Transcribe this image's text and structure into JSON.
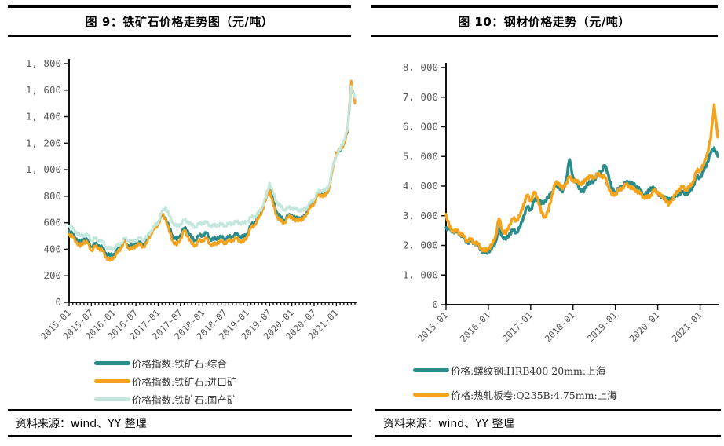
{
  "page": {
    "background": "#ffffff"
  },
  "colors": {
    "teal": "#2B8C8C",
    "orange": "#F5A31B",
    "light_teal": "#C3E6DD",
    "axis": "#111111",
    "tick_label": "#595959",
    "rule": "#000000"
  },
  "panels": [
    {
      "title": "图 9：铁矿石价格走势图（元/吨）",
      "source": "资料来源：wind、YY 整理"
    },
    {
      "title": "图 10：钢材价格走势（元/吨）",
      "source": "资料来源：wind、YY 整理"
    }
  ],
  "chart_data": [
    {
      "type": "line",
      "title": "图 9：铁矿石价格走势图（元/吨）",
      "ylabel": "",
      "xlabel": "",
      "grid": false,
      "legend_position": "bottom",
      "ylim": [
        0,
        1800
      ],
      "y_tick_labels": [
        "0",
        "200",
        "400",
        "600",
        "800",
        "1, 000",
        "1, 200",
        "1, 400",
        "1, 600",
        "1, 800"
      ],
      "x_tick_labels": [
        "2015-01",
        "2015-07",
        "2016-01",
        "2016-07",
        "2017-01",
        "2017-07",
        "2018-01",
        "2018-07",
        "2019-01",
        "2019-07",
        "2020-01",
        "2020-07",
        "2021-01"
      ],
      "x_label_every": 6,
      "x": [
        "2015-01",
        "2015-02",
        "2015-03",
        "2015-04",
        "2015-05",
        "2015-06",
        "2015-07",
        "2015-08",
        "2015-09",
        "2015-10",
        "2015-11",
        "2015-12",
        "2016-01",
        "2016-02",
        "2016-03",
        "2016-04",
        "2016-05",
        "2016-06",
        "2016-07",
        "2016-08",
        "2016-09",
        "2016-10",
        "2016-11",
        "2016-12",
        "2017-01",
        "2017-02",
        "2017-03",
        "2017-04",
        "2017-05",
        "2017-06",
        "2017-07",
        "2017-08",
        "2017-09",
        "2017-10",
        "2017-11",
        "2017-12",
        "2018-01",
        "2018-02",
        "2018-03",
        "2018-04",
        "2018-05",
        "2018-06",
        "2018-07",
        "2018-08",
        "2018-09",
        "2018-10",
        "2018-11",
        "2018-12",
        "2019-01",
        "2019-02",
        "2019-03",
        "2019-04",
        "2019-05",
        "2019-06",
        "2019-07",
        "2019-08",
        "2019-09",
        "2019-10",
        "2019-11",
        "2019-12",
        "2020-01",
        "2020-02",
        "2020-03",
        "2020-04",
        "2020-05",
        "2020-06",
        "2020-07",
        "2020-08",
        "2020-09",
        "2020-10",
        "2020-11",
        "2020-12",
        "2021-01",
        "2021-02",
        "2021-03",
        "2021-04",
        "2021-05",
        "2021-06"
      ],
      "series": [
        {
          "name": "价格指数:铁矿石:综合",
          "color": "#2B8C8C",
          "values": [
            540,
            510,
            480,
            450,
            480,
            465,
            420,
            440,
            430,
            410,
            370,
            350,
            365,
            395,
            430,
            470,
            430,
            420,
            445,
            450,
            440,
            460,
            530,
            560,
            600,
            655,
            640,
            560,
            500,
            470,
            510,
            560,
            540,
            480,
            470,
            500,
            510,
            520,
            480,
            470,
            490,
            490,
            480,
            490,
            500,
            510,
            500,
            490,
            520,
            580,
            605,
            640,
            700,
            780,
            870,
            760,
            680,
            640,
            620,
            650,
            660,
            630,
            640,
            630,
            680,
            720,
            750,
            810,
            820,
            810,
            860,
            1010,
            1120,
            1140,
            1200,
            1280,
            1640,
            1520
          ]
        },
        {
          "name": "价格指数:铁矿石:进口矿",
          "color": "#F5A31B",
          "values": [
            515,
            490,
            455,
            420,
            460,
            445,
            390,
            420,
            410,
            385,
            340,
            315,
            340,
            370,
            415,
            460,
            410,
            400,
            430,
            435,
            420,
            445,
            520,
            550,
            590,
            665,
            630,
            530,
            460,
            430,
            480,
            540,
            500,
            440,
            430,
            460,
            470,
            480,
            440,
            430,
            455,
            455,
            450,
            460,
            470,
            480,
            465,
            455,
            500,
            560,
            585,
            630,
            690,
            770,
            850,
            730,
            650,
            610,
            600,
            640,
            650,
            610,
            630,
            620,
            670,
            715,
            745,
            805,
            810,
            800,
            855,
            1000,
            1130,
            1150,
            1190,
            1290,
            1670,
            1500
          ]
        },
        {
          "name": "价格指数:铁矿石:国产矿",
          "color": "#C3E6DD",
          "values": [
            575,
            555,
            530,
            500,
            510,
            505,
            470,
            480,
            470,
            455,
            420,
            400,
            410,
            425,
            450,
            480,
            465,
            455,
            470,
            480,
            475,
            490,
            540,
            570,
            610,
            680,
            720,
            650,
            600,
            570,
            590,
            620,
            610,
            580,
            570,
            590,
            600,
            600,
            580,
            575,
            585,
            585,
            580,
            590,
            595,
            605,
            600,
            595,
            610,
            640,
            650,
            670,
            720,
            790,
            900,
            820,
            760,
            720,
            700,
            710,
            715,
            700,
            700,
            690,
            720,
            750,
            780,
            830,
            845,
            840,
            880,
            1020,
            1110,
            1150,
            1220,
            1300,
            1630,
            1540
          ]
        }
      ]
    },
    {
      "type": "line",
      "title": "图 10：钢材价格走势（元/吨）",
      "ylabel": "",
      "xlabel": "",
      "grid": false,
      "legend_position": "bottom",
      "ylim": [
        0,
        8000
      ],
      "y_tick_labels": [
        "0",
        "1, 000",
        "2, 000",
        "3, 000",
        "4, 000",
        "5, 000",
        "6, 000",
        "7, 000",
        "8, 000"
      ],
      "x_tick_labels": [
        "2015-01",
        "2016-01",
        "2017-01",
        "2018-01",
        "2019-01",
        "2020-01",
        "2021-01"
      ],
      "x_label_every": 12,
      "x": [
        "2015-01",
        "2015-02",
        "2015-03",
        "2015-04",
        "2015-05",
        "2015-06",
        "2015-07",
        "2015-08",
        "2015-09",
        "2015-10",
        "2015-11",
        "2015-12",
        "2016-01",
        "2016-02",
        "2016-03",
        "2016-04",
        "2016-05",
        "2016-06",
        "2016-07",
        "2016-08",
        "2016-09",
        "2016-10",
        "2016-11",
        "2016-12",
        "2017-01",
        "2017-02",
        "2017-03",
        "2017-04",
        "2017-05",
        "2017-06",
        "2017-07",
        "2017-08",
        "2017-09",
        "2017-10",
        "2017-11",
        "2017-12",
        "2018-01",
        "2018-02",
        "2018-03",
        "2018-04",
        "2018-05",
        "2018-06",
        "2018-07",
        "2018-08",
        "2018-09",
        "2018-10",
        "2018-11",
        "2018-12",
        "2019-01",
        "2019-02",
        "2019-03",
        "2019-04",
        "2019-05",
        "2019-06",
        "2019-07",
        "2019-08",
        "2019-09",
        "2019-10",
        "2019-11",
        "2019-12",
        "2020-01",
        "2020-02",
        "2020-03",
        "2020-04",
        "2020-05",
        "2020-06",
        "2020-07",
        "2020-08",
        "2020-09",
        "2020-10",
        "2020-11",
        "2020-12",
        "2021-01",
        "2021-02",
        "2021-03",
        "2021-04",
        "2021-05",
        "2021-06"
      ],
      "series": [
        {
          "name": "价格:螺纹钢:HRB400 20mm:上海",
          "color": "#2B8C8C",
          "values": [
            2600,
            2550,
            2480,
            2450,
            2400,
            2250,
            2100,
            2150,
            2100,
            2000,
            1850,
            1750,
            1800,
            1900,
            2100,
            2600,
            2300,
            2200,
            2400,
            2500,
            2450,
            2600,
            3000,
            3300,
            3200,
            3500,
            3600,
            3400,
            3500,
            3600,
            3800,
            4000,
            4000,
            3800,
            4200,
            4900,
            4300,
            4100,
            3900,
            3800,
            4100,
            4100,
            4200,
            4400,
            4500,
            4700,
            4400,
            3900,
            3800,
            3900,
            4000,
            4100,
            4150,
            4050,
            4000,
            3850,
            3700,
            3750,
            3950,
            3900,
            3800,
            3600,
            3650,
            3500,
            3600,
            3650,
            3750,
            3800,
            3750,
            3800,
            4000,
            4300,
            4300,
            4500,
            4800,
            5100,
            5300,
            5000
          ]
        },
        {
          "name": "价格:热轧板卷:Q235B:4.75mm:上海",
          "color": "#F5A31B",
          "values": [
            3050,
            2600,
            2500,
            2480,
            2420,
            2300,
            2150,
            2200,
            2100,
            2050,
            1900,
            1800,
            1900,
            2000,
            2300,
            2900,
            2500,
            2400,
            2700,
            2900,
            2850,
            3000,
            3400,
            3700,
            3500,
            3800,
            3600,
            3100,
            2950,
            3150,
            3700,
            4100,
            4100,
            3900,
            4100,
            4300,
            4200,
            4150,
            4100,
            4100,
            4300,
            4300,
            4300,
            4400,
            4350,
            4300,
            4000,
            3700,
            3750,
            3850,
            3950,
            4050,
            4000,
            3900,
            3850,
            3750,
            3650,
            3600,
            3700,
            3850,
            3800,
            3650,
            3600,
            3350,
            3550,
            3700,
            3900,
            3950,
            3900,
            3950,
            4150,
            4500,
            4550,
            4700,
            5100,
            5600,
            6750,
            5650
          ]
        }
      ]
    }
  ]
}
